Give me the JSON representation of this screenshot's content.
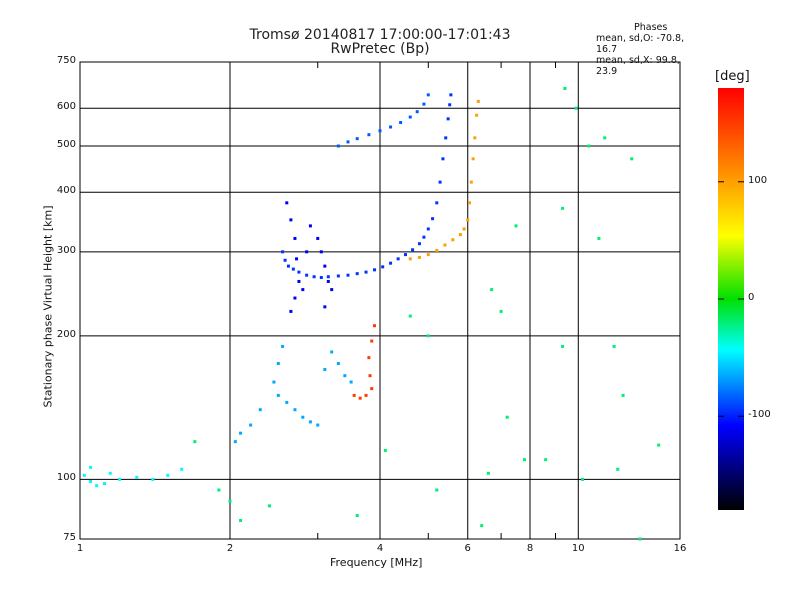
{
  "chart_data": {
    "type": "scatter",
    "title": "Tromsø 20140817 17:00:00-17:01:43",
    "subtitle": "RwPretec (Bp)",
    "xlabel": "Frequency [MHz]",
    "ylabel": "Stationary phase Virtual Height [km]",
    "xscale": "log",
    "yscale": "log",
    "xlim": [
      1,
      16
    ],
    "ylim": [
      75,
      750
    ],
    "x_ticks": [
      1,
      2,
      4,
      6,
      8,
      10,
      16
    ],
    "x_minor_ticks": [
      3,
      5,
      7,
      9
    ],
    "y_ticks": [
      75,
      100,
      200,
      300,
      400,
      500,
      600,
      750
    ],
    "grid": true,
    "phases_title": "Phases",
    "phase_stats": [
      "mean, sd,O: -70.8, 16.7",
      "mean, sd,X:  99.8, 23.9"
    ],
    "colorbar": {
      "label": "[deg]",
      "range": [
        -180,
        180
      ],
      "ticks": [
        100,
        0,
        -100
      ],
      "stops": [
        "#ff0000",
        "#ff8000",
        "#ffff00",
        "#00e000",
        "#00ffff",
        "#0000ff",
        "#000000"
      ]
    },
    "series": [
      {
        "trace": "o-mode-f-region-lower",
        "points": [
          [
            2.55,
            300
          ],
          [
            2.58,
            288
          ],
          [
            2.62,
            280
          ],
          [
            2.68,
            276
          ],
          [
            2.75,
            272
          ],
          [
            2.85,
            268
          ],
          [
            2.95,
            266
          ],
          [
            3.05,
            265
          ],
          [
            3.15,
            266
          ],
          [
            3.3,
            267
          ],
          [
            3.45,
            268
          ],
          [
            3.6,
            270
          ],
          [
            3.75,
            272
          ],
          [
            3.9,
            275
          ],
          [
            4.05,
            279
          ],
          [
            4.2,
            284
          ],
          [
            4.35,
            290
          ],
          [
            4.5,
            296
          ],
          [
            4.65,
            303
          ],
          [
            4.8,
            312
          ],
          [
            4.9,
            322
          ],
          [
            5.0,
            335
          ],
          [
            5.1,
            352
          ],
          [
            5.2,
            380
          ],
          [
            5.28,
            420
          ],
          [
            5.35,
            470
          ],
          [
            5.42,
            520
          ],
          [
            5.48,
            570
          ],
          [
            5.52,
            610
          ],
          [
            5.55,
            640
          ]
        ],
        "phase": -95
      },
      {
        "trace": "o-mode-f-region-upper",
        "points": [
          [
            3.3,
            500
          ],
          [
            3.45,
            510
          ],
          [
            3.6,
            518
          ],
          [
            3.8,
            528
          ],
          [
            4.0,
            538
          ],
          [
            4.2,
            548
          ],
          [
            4.4,
            560
          ],
          [
            4.6,
            575
          ],
          [
            4.75,
            590
          ],
          [
            4.9,
            612
          ],
          [
            5.0,
            640
          ]
        ],
        "phase": -85
      },
      {
        "trace": "o-mode-spread-f",
        "points": [
          [
            2.6,
            380
          ],
          [
            2.65,
            350
          ],
          [
            2.7,
            320
          ],
          [
            2.72,
            290
          ],
          [
            2.75,
            260
          ],
          [
            2.7,
            240
          ],
          [
            2.65,
            225
          ],
          [
            2.8,
            250
          ],
          [
            2.85,
            300
          ],
          [
            2.9,
            340
          ],
          [
            3.0,
            320
          ],
          [
            3.05,
            300
          ],
          [
            3.1,
            280
          ],
          [
            3.15,
            260
          ],
          [
            3.2,
            250
          ],
          [
            3.1,
            230
          ]
        ],
        "phase": -110
      },
      {
        "trace": "o-mode-e-region",
        "points": [
          [
            2.55,
            190
          ],
          [
            2.5,
            175
          ],
          [
            2.45,
            160
          ],
          [
            2.5,
            150
          ],
          [
            2.6,
            145
          ],
          [
            2.7,
            140
          ],
          [
            2.8,
            135
          ],
          [
            2.9,
            132
          ],
          [
            3.0,
            130
          ],
          [
            3.1,
            170
          ],
          [
            3.2,
            185
          ],
          [
            3.3,
            175
          ],
          [
            3.4,
            165
          ],
          [
            3.5,
            160
          ],
          [
            2.3,
            140
          ],
          [
            2.2,
            130
          ],
          [
            2.1,
            125
          ],
          [
            2.05,
            120
          ]
        ],
        "phase": -65
      },
      {
        "trace": "x-mode-f-region",
        "points": [
          [
            4.6,
            290
          ],
          [
            4.8,
            292
          ],
          [
            5.0,
            296
          ],
          [
            5.2,
            302
          ],
          [
            5.4,
            310
          ],
          [
            5.6,
            318
          ],
          [
            5.8,
            326
          ],
          [
            5.9,
            335
          ],
          [
            6.0,
            350
          ],
          [
            6.05,
            380
          ],
          [
            6.1,
            420
          ],
          [
            6.15,
            470
          ],
          [
            6.2,
            520
          ],
          [
            6.25,
            580
          ],
          [
            6.3,
            620
          ]
        ],
        "phase": 100
      },
      {
        "trace": "x-mode-e-region",
        "points": [
          [
            3.9,
            210
          ],
          [
            3.85,
            195
          ],
          [
            3.8,
            180
          ],
          [
            3.82,
            165
          ],
          [
            3.85,
            155
          ],
          [
            3.75,
            150
          ],
          [
            3.65,
            148
          ],
          [
            3.55,
            150
          ]
        ],
        "phase": 150
      },
      {
        "trace": "low-frequency-echoes",
        "points": [
          [
            1.02,
            102
          ],
          [
            1.05,
            99
          ],
          [
            1.08,
            97
          ],
          [
            1.12,
            98
          ],
          [
            1.2,
            100
          ],
          [
            1.3,
            101
          ],
          [
            1.4,
            100
          ],
          [
            1.5,
            102
          ],
          [
            1.6,
            105
          ],
          [
            1.05,
            106
          ],
          [
            1.15,
            103
          ]
        ],
        "phase": -45
      },
      {
        "trace": "scattered-noise",
        "points": [
          [
            1.7,
            120
          ],
          [
            1.9,
            95
          ],
          [
            2.0,
            90
          ],
          [
            2.1,
            82
          ],
          [
            2.4,
            88
          ],
          [
            3.6,
            84
          ],
          [
            4.1,
            115
          ],
          [
            5.2,
            95
          ],
          [
            6.4,
            80
          ],
          [
            6.6,
            103
          ],
          [
            7.2,
            135
          ],
          [
            7.8,
            110
          ],
          [
            8.6,
            110
          ],
          [
            9.3,
            190
          ],
          [
            9.3,
            370
          ],
          [
            9.4,
            660
          ],
          [
            9.9,
            600
          ],
          [
            10.5,
            500
          ],
          [
            11.3,
            520
          ],
          [
            11.8,
            190
          ],
          [
            12.3,
            150
          ],
          [
            12.8,
            470
          ],
          [
            13.3,
            75
          ],
          [
            14.5,
            118
          ],
          [
            6.7,
            250
          ],
          [
            7.0,
            225
          ],
          [
            7.5,
            340
          ],
          [
            10.2,
            100
          ],
          [
            11.0,
            320
          ],
          [
            12.0,
            105
          ],
          [
            5.0,
            200
          ],
          [
            4.6,
            220
          ]
        ],
        "phase": -20
      }
    ]
  }
}
